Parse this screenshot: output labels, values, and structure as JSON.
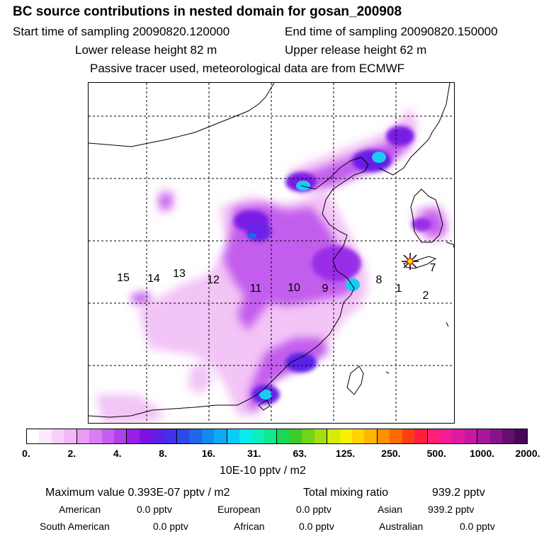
{
  "header": {
    "title": "BC  source contributions in nested domain for gosan_200908",
    "start_label": "Start time of sampling 20090820.120000",
    "end_label": "End time of sampling 20090820.150000",
    "lower_label": "Lower release height   82 m",
    "upper_label": "Upper release height   62 m",
    "tracer_label": "Passive tracer used, meteorological data are from ECMWF"
  },
  "map": {
    "regions": [
      "1",
      "2",
      "7",
      "8",
      "9",
      "10",
      "11",
      "12",
      "13",
      "14",
      "15"
    ],
    "receptor_marker": "star-receptor-gosan"
  },
  "colorbar": {
    "ticks": [
      "0.",
      "2.",
      "4.",
      "8.",
      "16.",
      "31.",
      "63.",
      "125.",
      "250.",
      "500.",
      "1000.",
      "2000."
    ],
    "unit": "10E-10 pptv / m2",
    "colors": [
      "#ffffff",
      "#fde8fd",
      "#f8cff8",
      "#f3b7f6",
      "#e99cf2",
      "#d97ef0",
      "#c75ded",
      "#b13fea",
      "#9a1fe5",
      "#7c12e3",
      "#5f1fe5",
      "#4430e8",
      "#2f48ea",
      "#1f66ec",
      "#1489ef",
      "#0eabf2",
      "#08cdf5",
      "#08ecf0",
      "#0cf0c0",
      "#10e890",
      "#18d855",
      "#3dcc2a",
      "#70d418",
      "#a4e010",
      "#d4ec0a",
      "#f8f000",
      "#ffd400",
      "#ffb400",
      "#ff9000",
      "#ff6a00",
      "#ff3d15",
      "#ff1e40",
      "#ff1e78",
      "#f41c96",
      "#e01aa2",
      "#c818a2",
      "#a8169a",
      "#88128a",
      "#660e70",
      "#48085a"
    ]
  },
  "stats": {
    "max_label": "Maximum value  0.393E-07 pptv / m2",
    "total_label": "Total mixing ratio",
    "total_value": "939.2 pptv",
    "american_label": "American",
    "american_value": "0.0 pptv",
    "european_label": "European",
    "european_value": "0.0 pptv",
    "asian_label": "Asian",
    "asian_value": "939.2 pptv",
    "south_american_label": "South American",
    "south_american_value": "0.0 pptv",
    "african_label": "African",
    "african_value": "0.0 pptv",
    "australian_label": "Australian",
    "australian_value": "0.0 pptv"
  }
}
